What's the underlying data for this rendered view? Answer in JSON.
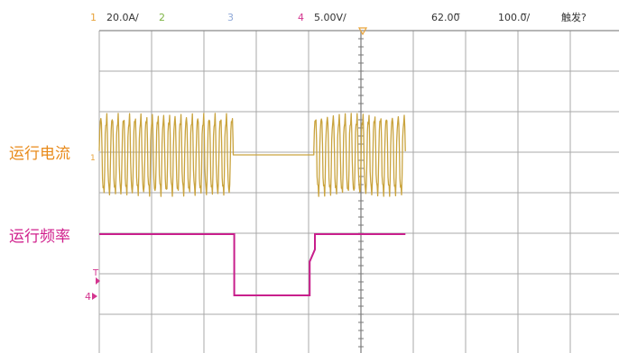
{
  "status_bar": {
    "ch1": {
      "num": "1",
      "scale": "20.0A/",
      "color": "#e8a33a"
    },
    "ch2": {
      "num": "2",
      "color": "#7cb342"
    },
    "ch3": {
      "num": "3",
      "color": "#8fa8d8"
    },
    "ch4": {
      "num": "4",
      "scale": "5.00V/",
      "color": "#d4358f"
    },
    "time_position": "62.00̅",
    "time_scale": "100.0̅/",
    "trigger": "触发?"
  },
  "labels": {
    "current": "运行电流",
    "frequency": "运行频率"
  },
  "colors": {
    "current_wave": "#c9a33d",
    "frequency_wave": "#c81f8c",
    "grid": "#9a9a9a",
    "marker": "#d4358f"
  },
  "chart_data": {
    "type": "line",
    "series": [
      {
        "name": "运行电流",
        "kind": "ac_current",
        "segments": [
          {
            "t_start": 0.0,
            "t_end": 2.56,
            "state": "running",
            "cycles": 23.5
          },
          {
            "t_start": 2.56,
            "t_end": 4.1,
            "state": "stopped"
          },
          {
            "t_start": 4.1,
            "t_end": 5.85,
            "state": "running",
            "cycles": 15.5
          }
        ]
      },
      {
        "name": "运行频率",
        "kind": "step",
        "points": [
          [
            0.0,
            1
          ],
          [
            2.58,
            1
          ],
          [
            2.58,
            0
          ],
          [
            4.02,
            0
          ],
          [
            4.02,
            0.55
          ],
          [
            4.12,
            0.75
          ],
          [
            4.12,
            1
          ],
          [
            5.85,
            1
          ]
        ]
      }
    ],
    "x_divisions": 10,
    "y_divisions": 8,
    "grid": true
  }
}
